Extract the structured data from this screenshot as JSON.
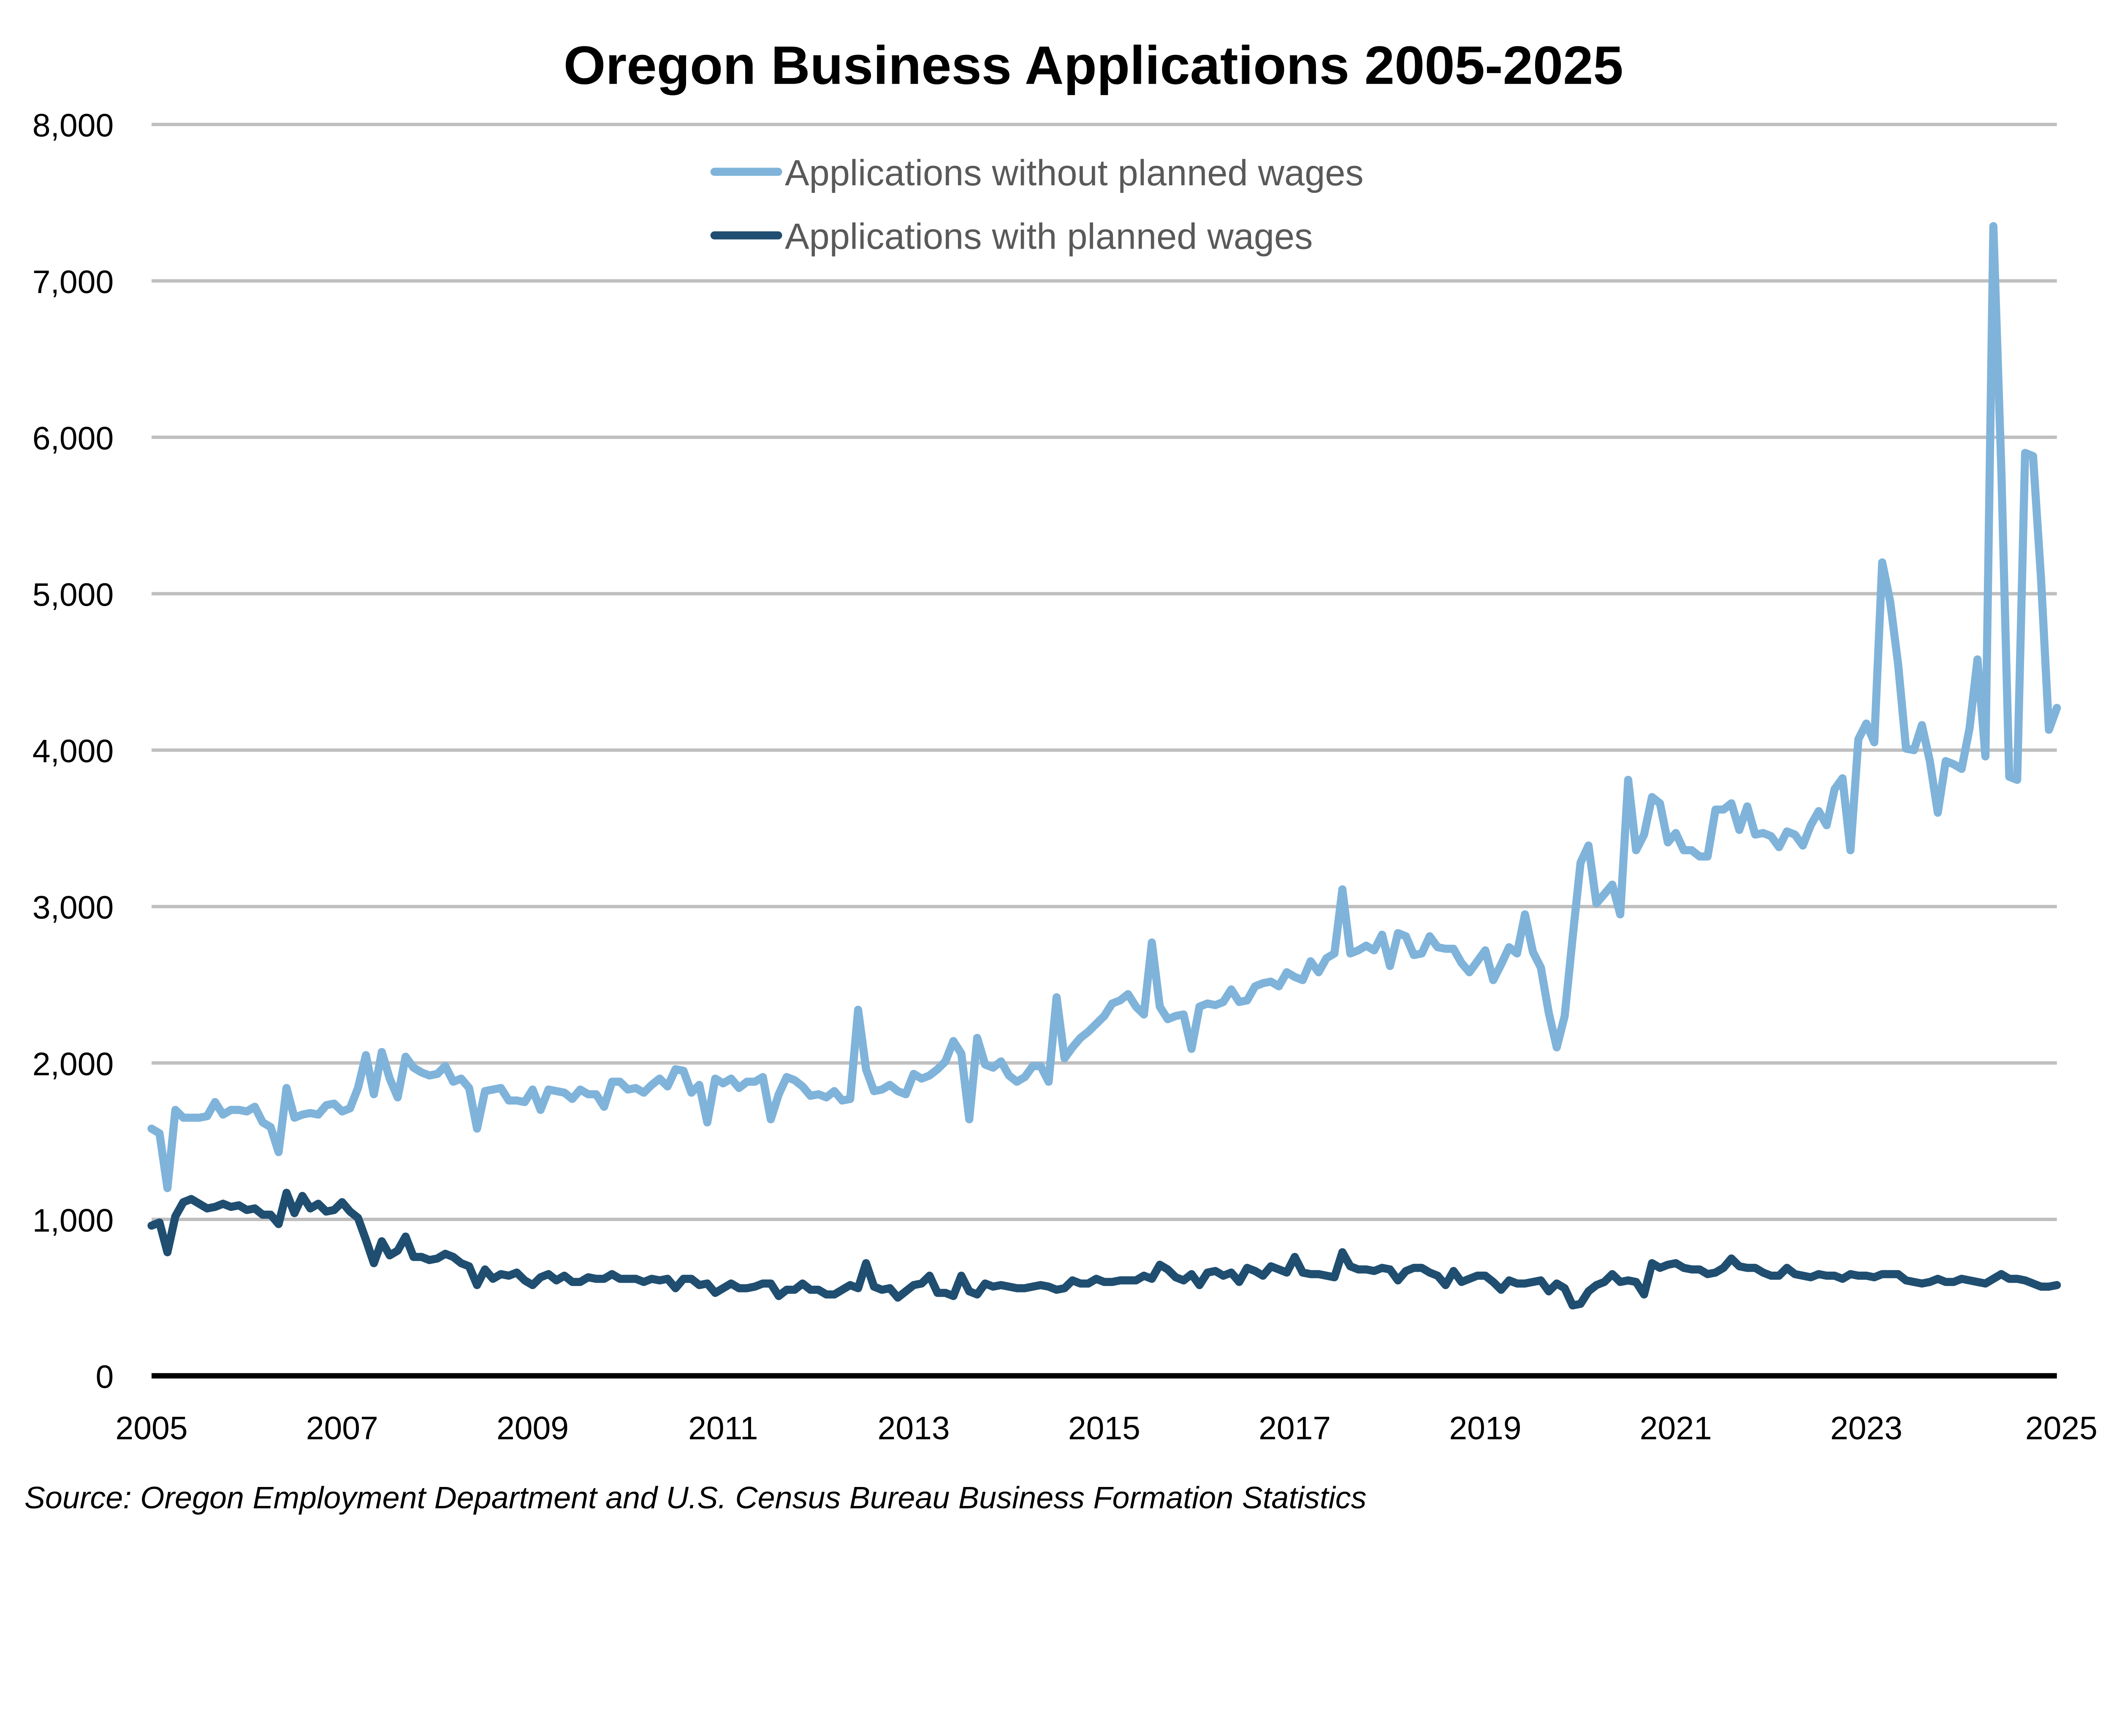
{
  "chart_data": {
    "type": "line",
    "title": "Oregon Business Applications 2005-2025",
    "xlabel": "",
    "ylabel": "",
    "ylim": [
      0,
      8000
    ],
    "xlim": [
      "2005-01",
      "2025-01"
    ],
    "y_ticks": [
      "0",
      "1,000",
      "2,000",
      "3,000",
      "4,000",
      "5,000",
      "6,000",
      "7,000",
      "8,000"
    ],
    "x_ticks": [
      "2005",
      "2007",
      "2009",
      "2011",
      "2013",
      "2015",
      "2017",
      "2019",
      "2021",
      "2023",
      "2025"
    ],
    "grid": "horizontal",
    "legend_position": "top-center",
    "x_frequency": "monthly",
    "series": [
      {
        "name": "Applications without planned wages",
        "color": "#7FB3DA",
        "values": [
          1580,
          1550,
          1200,
          1700,
          1650,
          1650,
          1650,
          1660,
          1750,
          1670,
          1700,
          1700,
          1690,
          1720,
          1620,
          1590,
          1430,
          1840,
          1650,
          1670,
          1680,
          1670,
          1730,
          1740,
          1690,
          1710,
          1840,
          2050,
          1800,
          2070,
          1900,
          1780,
          2040,
          1970,
          1940,
          1920,
          1930,
          1980,
          1880,
          1900,
          1840,
          1580,
          1820,
          1830,
          1840,
          1760,
          1760,
          1750,
          1830,
          1700,
          1830,
          1820,
          1810,
          1770,
          1830,
          1800,
          1800,
          1720,
          1880,
          1880,
          1830,
          1840,
          1810,
          1860,
          1900,
          1850,
          1960,
          1950,
          1810,
          1860,
          1620,
          1900,
          1870,
          1900,
          1840,
          1880,
          1880,
          1910,
          1640,
          1800,
          1910,
          1890,
          1850,
          1790,
          1800,
          1780,
          1820,
          1760,
          1770,
          2340,
          1960,
          1820,
          1830,
          1860,
          1820,
          1800,
          1930,
          1900,
          1920,
          1960,
          2010,
          2140,
          2060,
          1640,
          2160,
          1990,
          1970,
          2010,
          1920,
          1880,
          1910,
          1980,
          1980,
          1880,
          2420,
          2030,
          2100,
          2160,
          2200,
          2250,
          2300,
          2380,
          2400,
          2440,
          2360,
          2310,
          2770,
          2360,
          2280,
          2300,
          2310,
          2090,
          2360,
          2380,
          2370,
          2390,
          2470,
          2390,
          2400,
          2490,
          2510,
          2520,
          2490,
          2580,
          2550,
          2530,
          2650,
          2580,
          2670,
          2700,
          3110,
          2700,
          2720,
          2750,
          2720,
          2820,
          2620,
          2830,
          2810,
          2690,
          2700,
          2810,
          2740,
          2730,
          2730,
          2640,
          2580,
          2650,
          2720,
          2530,
          2630,
          2740,
          2700,
          2950,
          2710,
          2610,
          2320,
          2100,
          2300,
          2800,
          3280,
          3390,
          3020,
          3080,
          3140,
          2950,
          3810,
          3360,
          3460,
          3700,
          3660,
          3410,
          3470,
          3360,
          3360,
          3320,
          3320,
          3620,
          3620,
          3660,
          3490,
          3640,
          3460,
          3470,
          3450,
          3380,
          3480,
          3460,
          3390,
          3520,
          3610,
          3520,
          3750,
          3820,
          3360,
          4070,
          4170,
          4050,
          5200,
          4950,
          4550,
          4010,
          4000,
          4160,
          3930,
          3600,
          3930,
          3910,
          3880,
          4140,
          4580,
          3960,
          7350,
          5800,
          3830,
          3810,
          5900,
          5880,
          5100,
          4130,
          4270
        ]
      },
      {
        "name": "Applications with planned wages",
        "color": "#1F4E70",
        "values": [
          960,
          980,
          790,
          1020,
          1110,
          1130,
          1100,
          1070,
          1080,
          1100,
          1080,
          1090,
          1060,
          1070,
          1030,
          1030,
          970,
          1170,
          1040,
          1150,
          1070,
          1100,
          1050,
          1060,
          1110,
          1050,
          1010,
          870,
          720,
          860,
          770,
          800,
          890,
          760,
          760,
          740,
          750,
          780,
          760,
          720,
          700,
          580,
          680,
          620,
          650,
          640,
          660,
          610,
          580,
          630,
          650,
          610,
          640,
          600,
          600,
          630,
          620,
          620,
          650,
          620,
          620,
          620,
          600,
          620,
          610,
          620,
          560,
          620,
          620,
          580,
          590,
          530,
          560,
          590,
          560,
          560,
          570,
          590,
          590,
          510,
          550,
          550,
          590,
          550,
          550,
          520,
          520,
          550,
          580,
          560,
          720,
          570,
          550,
          560,
          500,
          540,
          580,
          590,
          640,
          530,
          530,
          510,
          640,
          540,
          520,
          590,
          570,
          580,
          570,
          560,
          560,
          570,
          580,
          570,
          550,
          560,
          610,
          590,
          590,
          620,
          600,
          600,
          610,
          610,
          610,
          640,
          620,
          710,
          680,
          630,
          610,
          650,
          580,
          660,
          670,
          640,
          660,
          600,
          690,
          670,
          640,
          700,
          680,
          660,
          760,
          660,
          650,
          650,
          640,
          630,
          790,
          700,
          680,
          680,
          670,
          690,
          680,
          610,
          670,
          690,
          690,
          660,
          640,
          580,
          670,
          600,
          620,
          640,
          640,
          600,
          550,
          610,
          590,
          590,
          600,
          610,
          540,
          590,
          560,
          450,
          460,
          540,
          580,
          600,
          650,
          600,
          610,
          600,
          520,
          720,
          690,
          710,
          720,
          690,
          680,
          680,
          650,
          660,
          690,
          750,
          700,
          690,
          690,
          660,
          640,
          640,
          690,
          650,
          640,
          630,
          650,
          640,
          640,
          620,
          650,
          640,
          640,
          630,
          650,
          650,
          650,
          610,
          600,
          590,
          600,
          620,
          600,
          600,
          620,
          610,
          600,
          590,
          620,
          650,
          620,
          620,
          610,
          590,
          570,
          570,
          580
        ]
      }
    ],
    "source": "Source: Oregon Employment Department and U.S. Census Bureau Business Formation Statistics"
  }
}
